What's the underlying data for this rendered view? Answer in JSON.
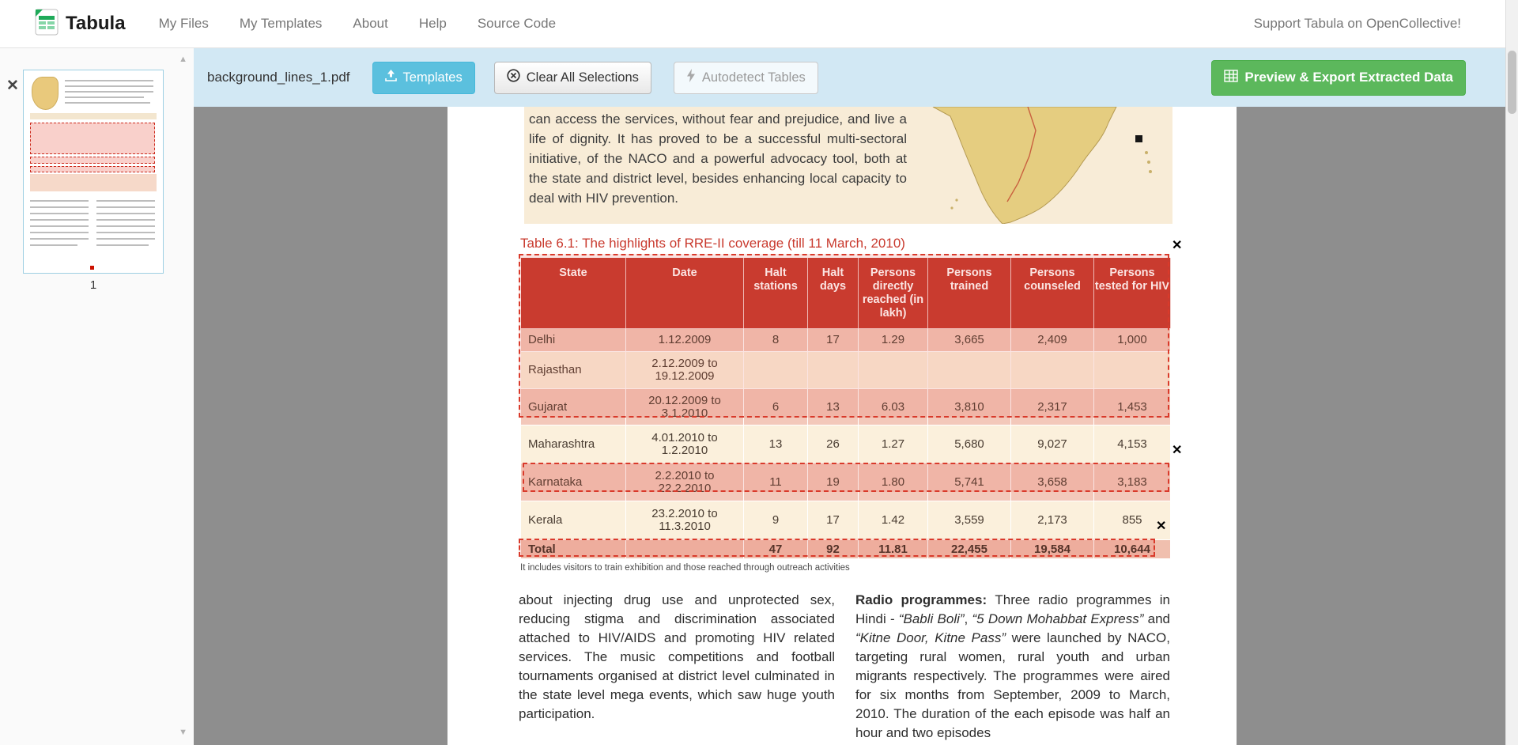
{
  "navbar": {
    "brand": "Tabula",
    "items": [
      "My Files",
      "My Templates",
      "About",
      "Help",
      "Source Code"
    ],
    "support_link": "Support Tabula on OpenCollective!"
  },
  "toolbar": {
    "filename": "background_lines_1.pdf",
    "templates_label": "Templates",
    "clear_label": "Clear All Selections",
    "autodetect_label": "Autodetect Tables",
    "export_label": "Preview & Export Extracted Data"
  },
  "sidebar": {
    "page_number": "1"
  },
  "pdf": {
    "intro_text": "can access the services, without fear and prejudice, and live a life of dignity. It has proved to be a successful multi-sectoral initiative, of the NACO and a powerful advocacy tool, both at the state and district level, besides enhancing local capacity to deal with HIV prevention.",
    "table_title": "Table 6.1: The highlights of RRE-II coverage (till 11 March, 2010)",
    "table": {
      "headers": [
        "State",
        "Date",
        "Halt stations",
        "Halt days",
        "Persons directly reached (in lakh)",
        "Persons trained",
        "Persons counseled",
        "Persons tested for HIV"
      ],
      "rows": [
        [
          "Delhi",
          "1.12.2009",
          "8",
          "17",
          "1.29",
          "3,665",
          "2,409",
          "1,000"
        ],
        [
          "Rajasthan",
          "2.12.2009 to 19.12.2009",
          "",
          "",
          "",
          "",
          "",
          ""
        ],
        [
          "Gujarat",
          "20.12.2009 to 3.1.2010",
          "6",
          "13",
          "6.03",
          "3,810",
          "2,317",
          "1,453"
        ],
        [
          "Maharashtra",
          "4.01.2010 to 1.2.2010",
          "13",
          "26",
          "1.27",
          "5,680",
          "9,027",
          "4,153"
        ],
        [
          "Karnataka",
          "2.2.2010 to 22.2.2010",
          "11",
          "19",
          "1.80",
          "5,741",
          "3,658",
          "3,183"
        ],
        [
          "Kerala",
          "23.2.2010 to 11.3.2010",
          "9",
          "17",
          "1.42",
          "3,559",
          "2,173",
          "855"
        ],
        [
          "Total",
          "",
          "47",
          "92",
          "11.81",
          "22,455",
          "19,584",
          "10,644"
        ]
      ]
    },
    "footnote": "It includes visitors to train exhibition and those reached through outreach activities",
    "left_column_text": "about injecting drug use and unprotected sex, reducing stigma and discrimination associated attached to HIV/AIDS and promoting HIV related services. The music competitions and football tournaments organised at district level culminated in the state level mega events, which saw huge youth participation.",
    "right_column_segments": [
      {
        "t": "Radio programmes: ",
        "b": true
      },
      {
        "t": "Three radio programmes in Hindi - "
      },
      {
        "t": "“Babli Boli”",
        "i": true
      },
      {
        "t": ", "
      },
      {
        "t": "“5 Down Mohabbat Express”",
        "i": true
      },
      {
        "t": " and "
      },
      {
        "t": "“Kitne Door, Kitne Pass”",
        "i": true
      },
      {
        "t": " were launched by NACO, targeting rural women, rural youth and urban migrants respectively. The programmes were aired for six months from September, 2009 to March, 2010. The duration of the each episode was half an hour and two episodes"
      }
    ]
  },
  "colors": {
    "toolbar_bg": "#d2e8f4",
    "templates_btn": "#5bc0de",
    "export_btn": "#5cb85c",
    "table_header_red": "#c5392d",
    "selection_red": "#d93a2b",
    "title_red": "#c93a2e"
  }
}
